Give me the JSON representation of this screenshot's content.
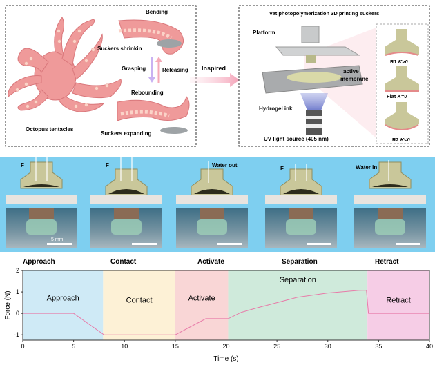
{
  "panel_a": {
    "left_box": {
      "bending": "Bending",
      "suckers_shrinking": "Suckers shrinkin",
      "grasping": "Grasping",
      "releasing": "Releasing",
      "rebounding": "Rebounding",
      "suckers_expanding": "Suckers expanding",
      "octopus_label": "Octopus tentacles"
    },
    "inspired": "Inspired",
    "right_box": {
      "title": "Vat photopolymerization 3D printing suckers",
      "platform": "Platform",
      "active_membrane_1": "active",
      "active_membrane_2": "membrane",
      "hydrogel_ink": "Hydrogel ink",
      "uv_source": "UV light source (405 nm)",
      "shapes": [
        {
          "name": "R1",
          "k": "K>0"
        },
        {
          "name": "Flat",
          "k": "K=0"
        },
        {
          "name": "R2",
          "k": "K<0"
        }
      ]
    }
  },
  "panel_b": {
    "force_label": "F",
    "water_out": "Water out",
    "water_in": "Water in",
    "scale_bar": "5 mm",
    "stages": [
      "Approach",
      "Contact",
      "Activate",
      "Separation",
      "Retract"
    ]
  },
  "colors": {
    "band_blue": "#7ecff0",
    "sucker_olive": "#c9c79a",
    "octopus_pink": "#ef9a9a",
    "approach": "#cfeaf6",
    "contact": "#fdf1d6",
    "activate": "#f9d6d6",
    "separation": "#cfeadb",
    "retract": "#f6cde6",
    "line": "#e87aa8"
  },
  "chart_data": {
    "type": "line",
    "xlabel": "Time (s)",
    "ylabel": "Force (N)",
    "xlim": [
      0,
      40
    ],
    "ylim": [
      -1.25,
      2
    ],
    "xticks": [
      "0",
      "5",
      "10",
      "15",
      "20",
      "25",
      "30",
      "35",
      "40"
    ],
    "yticks": [
      "-1",
      "0",
      "1",
      "2"
    ],
    "grid": false,
    "regions": [
      {
        "label": "Approach",
        "from": 0,
        "to": 7.9
      },
      {
        "label": "Contact",
        "from": 7.9,
        "to": 15
      },
      {
        "label": "Activate",
        "from": 15,
        "to": 20.2
      },
      {
        "label": "Separation",
        "from": 20.2,
        "to": 33.9
      },
      {
        "label": "Retract",
        "from": 33.9,
        "to": 40
      }
    ],
    "x": [
      0,
      5,
      8,
      15,
      18,
      20.2,
      21.5,
      23,
      25,
      27,
      30,
      33,
      33.8,
      34,
      40
    ],
    "y": [
      0,
      0,
      -1,
      -1,
      -0.25,
      -0.25,
      0.05,
      0.25,
      0.5,
      0.75,
      0.95,
      1.07,
      1.08,
      0,
      0
    ]
  }
}
